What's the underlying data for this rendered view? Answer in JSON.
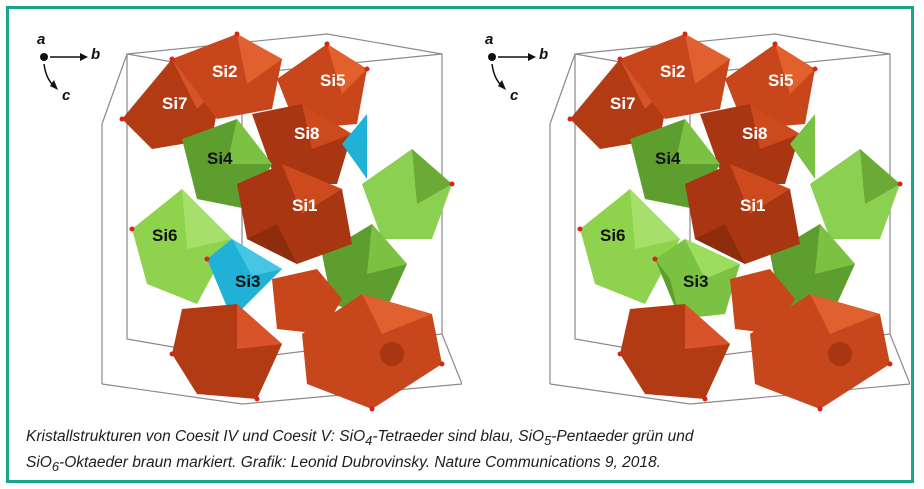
{
  "colors": {
    "frame": "#1aa58a",
    "octahedra": "#c8461c",
    "pentahedra": "#7cc242",
    "tetrahedra": "#1fb2d6",
    "cell_lines": "#8a8a8a"
  },
  "panels": [
    {
      "name": "coesite-iv",
      "axes": [
        "a",
        "b",
        "c"
      ],
      "sites": [
        "Si2",
        "Si7",
        "Si5",
        "Si8",
        "Si4",
        "Si1",
        "Si6",
        "Si3"
      ]
    },
    {
      "name": "coesite-v",
      "axes": [
        "a",
        "b",
        "c"
      ],
      "sites": [
        "Si2",
        "Si7",
        "Si5",
        "Si8",
        "Si4",
        "Si1",
        "Si6",
        "Si3"
      ]
    }
  ],
  "caption": {
    "line1_part1": "Kristallstrukturen von Coesit IV und Coesit V: SiO",
    "sub1": "4",
    "line1_part2": "-Tetraeder sind blau, SiO",
    "sub2": "5",
    "line1_part3": "-Pentaeder grün und",
    "line2_part1": "SiO",
    "sub3": "6",
    "line2_part2": "-Oktaeder braun markiert. Grafik: Leonid Dubrovinsky. Nature Communications 9, 2018."
  }
}
